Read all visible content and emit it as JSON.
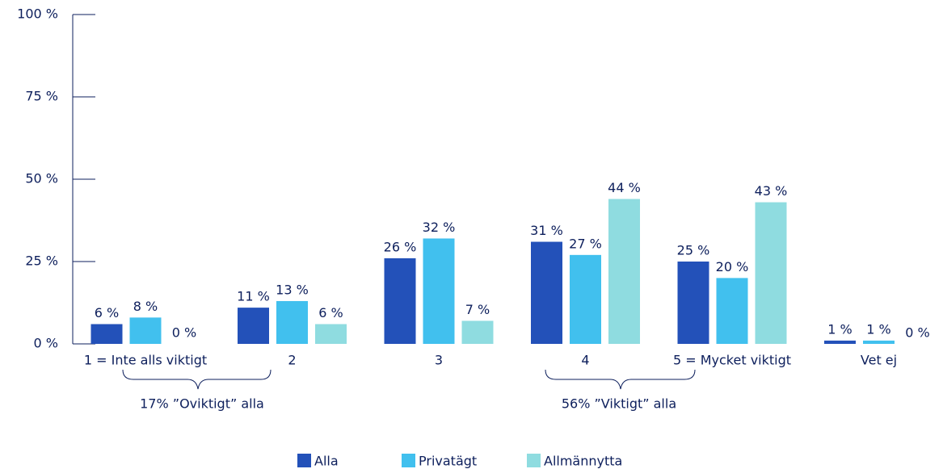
{
  "chart_data": {
    "type": "bar",
    "categories": [
      "1 = Inte alls viktigt",
      "2",
      "3",
      "4",
      "5 = Mycket viktigt",
      "Vet ej"
    ],
    "series": [
      {
        "name": "Alla",
        "color": "#2351b9",
        "values": [
          6,
          11,
          26,
          31,
          25,
          1
        ],
        "value_labels": [
          "6 %",
          "11 %",
          "26 %",
          "31 %",
          "25 %",
          "1 %"
        ]
      },
      {
        "name": "Privatägt",
        "color": "#41c0ee",
        "values": [
          8,
          13,
          32,
          27,
          20,
          1
        ],
        "value_labels": [
          "8 %",
          "13 %",
          "32 %",
          "27 %",
          "20 %",
          "1 %"
        ]
      },
      {
        "name": "Allmännytta",
        "color": "#8fdce0",
        "values": [
          0,
          6,
          7,
          44,
          43,
          0
        ],
        "value_labels": [
          "0 %",
          "6 %",
          "7 %",
          "44 %",
          "43 %",
          "0 %"
        ]
      }
    ],
    "ylim": [
      0,
      100
    ],
    "yticks": [
      {
        "value": 0,
        "label": "0 %"
      },
      {
        "value": 25,
        "label": "25 %"
      },
      {
        "value": 50,
        "label": "50 %"
      },
      {
        "value": 75,
        "label": "75 %"
      },
      {
        "value": 100,
        "label": "100 %"
      }
    ],
    "annotations": [
      "17% ”Oviktigt” alla",
      "56% ”Viktigt” alla"
    ],
    "legend": "bottom"
  }
}
